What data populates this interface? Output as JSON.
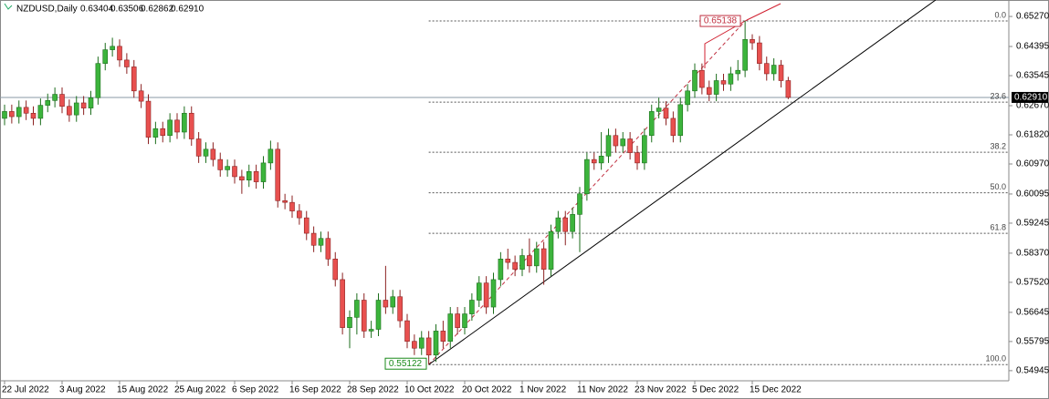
{
  "chart_data": {
    "type": "candlestick",
    "title": "NZDUSD,Daily",
    "ohlc_text": [
      "0.63404",
      "0.63506",
      "0.62862",
      "0.62910"
    ],
    "categories": [
      "22 Jul 2022",
      null,
      null,
      null,
      null,
      null,
      null,
      null,
      "3 Aug 2022",
      null,
      null,
      null,
      null,
      null,
      null,
      null,
      "15 Aug 2022",
      null,
      null,
      null,
      null,
      null,
      null,
      null,
      "25 Aug 2022",
      null,
      null,
      null,
      null,
      null,
      null,
      null,
      "6 Sep 2022",
      null,
      null,
      null,
      null,
      null,
      null,
      null,
      "16 Sep 2022",
      null,
      null,
      null,
      null,
      null,
      null,
      null,
      "28 Sep 2022",
      null,
      null,
      null,
      null,
      null,
      null,
      null,
      "10 Oct 2022",
      null,
      null,
      null,
      null,
      null,
      null,
      null,
      "20 Oct 2022",
      null,
      null,
      null,
      null,
      null,
      null,
      null,
      "1 Nov 2022",
      null,
      null,
      null,
      null,
      null,
      null,
      null,
      "11 Nov 2022",
      null,
      null,
      null,
      null,
      null,
      null,
      null,
      "23 Nov 2022",
      null,
      null,
      null,
      null,
      null,
      null,
      null,
      "5 Dec 2022",
      null,
      null,
      null,
      null,
      null,
      null,
      null,
      "15 Dec 2022",
      null,
      null,
      null,
      null,
      null
    ],
    "open": [
      0.623,
      0.625,
      0.6235,
      0.6262,
      0.6245,
      0.623,
      0.6268,
      0.6282,
      0.63,
      0.6265,
      0.624,
      0.6275,
      0.626,
      0.629,
      0.639,
      0.643,
      0.644,
      0.64,
      0.638,
      0.631,
      0.628,
      0.6175,
      0.62,
      0.618,
      0.6225,
      0.619,
      0.6245,
      0.617,
      0.612,
      0.614,
      0.611,
      0.608,
      0.609,
      0.606,
      0.605,
      0.6075,
      0.6045,
      0.61,
      0.614,
      0.599,
      0.5985,
      0.596,
      0.594,
      0.5895,
      0.586,
      0.588,
      0.582,
      0.576,
      0.562,
      0.565,
      0.57,
      0.561,
      0.5615,
      0.57,
      0.568,
      0.571,
      0.564,
      0.558,
      0.556,
      0.559,
      0.554,
      0.561,
      0.558,
      0.566,
      0.562,
      0.566,
      0.57,
      0.575,
      0.568,
      0.576,
      0.582,
      0.581,
      0.579,
      0.583,
      0.58,
      0.585,
      0.579,
      0.59,
      0.594,
      0.59,
      0.595,
      0.601,
      0.611,
      0.61,
      0.612,
      0.618,
      0.615,
      0.617,
      0.613,
      0.61,
      0.618,
      0.625,
      0.626,
      0.623,
      0.618,
      0.627,
      0.631,
      0.637,
      0.632,
      0.63,
      0.634,
      0.633,
      0.636,
      0.637,
      0.646,
      0.645,
      0.639,
      0.636,
      0.6385,
      0.634
    ],
    "high": [
      0.627,
      0.627,
      0.6282,
      0.6282,
      0.6265,
      0.6288,
      0.6302,
      0.632,
      0.632,
      0.6285,
      0.6295,
      0.6295,
      0.631,
      0.641,
      0.645,
      0.6465,
      0.646,
      0.642,
      0.64,
      0.633,
      0.63,
      0.622,
      0.622,
      0.6245,
      0.6245,
      0.6265,
      0.6265,
      0.619,
      0.616,
      0.616,
      0.613,
      0.611,
      0.611,
      0.608,
      0.6095,
      0.6095,
      0.612,
      0.6165,
      0.616,
      0.601,
      0.6005,
      0.598,
      0.596,
      0.5915,
      0.59,
      0.59,
      0.584,
      0.578,
      0.567,
      0.572,
      0.572,
      0.564,
      0.572,
      0.58,
      0.573,
      0.573,
      0.566,
      0.56,
      0.561,
      0.561,
      0.563,
      0.564,
      0.568,
      0.568,
      0.568,
      0.572,
      0.577,
      0.577,
      0.578,
      0.584,
      0.585,
      0.583,
      0.585,
      0.588,
      0.587,
      0.587,
      0.592,
      0.596,
      0.596,
      0.597,
      0.603,
      0.613,
      0.613,
      0.619,
      0.62,
      0.62,
      0.619,
      0.619,
      0.615,
      0.62,
      0.627,
      0.629,
      0.628,
      0.625,
      0.629,
      0.633,
      0.639,
      0.639,
      0.634,
      0.636,
      0.636,
      0.638,
      0.64,
      0.6514,
      0.6475,
      0.647,
      0.641,
      0.6405,
      0.64,
      0.6351
    ],
    "low": [
      0.621,
      0.6215,
      0.6215,
      0.6225,
      0.621,
      0.621,
      0.6248,
      0.6262,
      0.6245,
      0.622,
      0.622,
      0.624,
      0.624,
      0.627,
      0.637,
      0.641,
      0.638,
      0.636,
      0.629,
      0.626,
      0.6155,
      0.6155,
      0.616,
      0.616,
      0.617,
      0.617,
      0.615,
      0.61,
      0.61,
      0.609,
      0.606,
      0.606,
      0.604,
      0.601,
      0.603,
      0.6025,
      0.6025,
      0.608,
      0.597,
      0.5965,
      0.594,
      0.592,
      0.5875,
      0.584,
      0.584,
      0.58,
      0.574,
      0.56,
      0.556,
      0.56,
      0.559,
      0.559,
      0.5595,
      0.566,
      0.566,
      0.562,
      0.556,
      0.554,
      0.554,
      0.5512,
      0.552,
      0.556,
      0.556,
      0.56,
      0.56,
      0.564,
      0.568,
      0.566,
      0.566,
      0.574,
      0.579,
      0.577,
      0.577,
      0.578,
      0.578,
      0.5745,
      0.577,
      0.588,
      0.586,
      0.588,
      0.584,
      0.599,
      0.608,
      0.608,
      0.61,
      0.613,
      0.613,
      0.611,
      0.608,
      0.608,
      0.616,
      0.623,
      0.621,
      0.616,
      0.616,
      0.625,
      0.629,
      0.63,
      0.628,
      0.628,
      0.631,
      0.631,
      0.634,
      0.635,
      0.643,
      0.637,
      0.634,
      0.634,
      0.632,
      0.6286
    ],
    "close": [
      0.625,
      0.6235,
      0.6262,
      0.6245,
      0.623,
      0.6268,
      0.6282,
      0.63,
      0.6265,
      0.624,
      0.6275,
      0.626,
      0.629,
      0.639,
      0.643,
      0.644,
      0.64,
      0.638,
      0.631,
      0.628,
      0.6175,
      0.62,
      0.618,
      0.6225,
      0.619,
      0.6245,
      0.617,
      0.612,
      0.614,
      0.611,
      0.608,
      0.609,
      0.606,
      0.605,
      0.6075,
      0.6045,
      0.61,
      0.614,
      0.599,
      0.5985,
      0.596,
      0.594,
      0.5895,
      0.586,
      0.588,
      0.582,
      0.576,
      0.562,
      0.565,
      0.57,
      0.561,
      0.5615,
      0.57,
      0.568,
      0.571,
      0.564,
      0.558,
      0.556,
      0.559,
      0.554,
      0.561,
      0.558,
      0.566,
      0.562,
      0.566,
      0.57,
      0.575,
      0.568,
      0.576,
      0.582,
      0.581,
      0.579,
      0.583,
      0.58,
      0.585,
      0.579,
      0.59,
      0.594,
      0.59,
      0.595,
      0.601,
      0.611,
      0.61,
      0.612,
      0.618,
      0.615,
      0.617,
      0.613,
      0.61,
      0.618,
      0.625,
      0.626,
      0.623,
      0.618,
      0.627,
      0.631,
      0.637,
      0.632,
      0.63,
      0.634,
      0.633,
      0.636,
      0.637,
      0.646,
      0.645,
      0.639,
      0.636,
      0.6385,
      0.634,
      0.6291
    ],
    "up_color": "#3cb43c",
    "down_color": "#e8504f",
    "ylim": [
      0.5465,
      0.6575
    ],
    "yticks": [
      {
        "value": 0.6527,
        "label": "0.65270"
      },
      {
        "value": 0.64395,
        "label": "0.64395"
      },
      {
        "value": 0.63545,
        "label": "0.63545"
      },
      {
        "value": 0.6267,
        "label": "0.62670"
      },
      {
        "value": 0.6182,
        "label": "0.61820"
      },
      {
        "value": 0.6097,
        "label": "0.60970"
      },
      {
        "value": 0.60095,
        "label": "0.60095"
      },
      {
        "value": 0.59245,
        "label": "0.59245"
      },
      {
        "value": 0.5837,
        "label": "0.58370"
      },
      {
        "value": 0.5752,
        "label": "0.57520"
      },
      {
        "value": 0.56645,
        "label": "0.56645"
      },
      {
        "value": 0.55795,
        "label": "0.55795"
      },
      {
        "value": 0.54945,
        "label": "0.54945"
      }
    ],
    "current_price": {
      "value": 0.6291,
      "label": "0.62910"
    },
    "fib": {
      "high": {
        "index": 103,
        "value": 0.65138,
        "label": "0.65138"
      },
      "low": {
        "index": 59,
        "value": 0.55122,
        "label": "0.55122"
      },
      "levels": [
        {
          "label": "0.0",
          "value": 0.65138
        },
        {
          "label": "23.6",
          "value": 0.62774
        },
        {
          "label": "38.2",
          "value": 0.61312
        },
        {
          "label": "50.0",
          "value": 0.6013
        },
        {
          "label": "61.8",
          "value": 0.58948
        },
        {
          "label": "100.0",
          "value": 0.55122
        }
      ]
    },
    "trendline": {
      "x": [
        59,
        129.5
      ],
      "y": [
        0.55122,
        0.6575
      ]
    }
  }
}
